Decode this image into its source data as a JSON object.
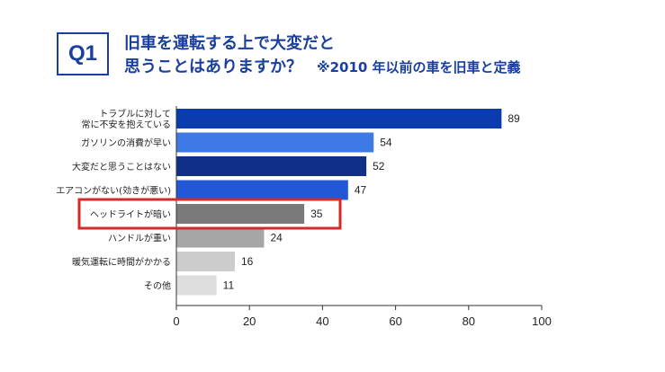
{
  "header": {
    "badge": "Q1",
    "title_line1": "旧車を運転する上で大変だと",
    "title_line2": "思うことはありますか？",
    "note": "※2010 年以前の車を旧車と定義"
  },
  "chart_data": {
    "type": "bar",
    "orientation": "horizontal",
    "categories": [
      [
        "トラブルに対して",
        "常に不安を抱えている"
      ],
      [
        "ガソリンの消費が早い"
      ],
      [
        "大変だと思うことはない"
      ],
      [
        "エアコンがない(効きが悪い)"
      ],
      [
        "ヘッドライトが暗い"
      ],
      [
        "ハンドルが重い"
      ],
      [
        "暖気運転に時間がかかる"
      ],
      [
        "その他"
      ]
    ],
    "values": [
      89,
      54,
      52,
      47,
      35,
      24,
      16,
      11
    ],
    "bar_colors": [
      "#0a3cb0",
      "#3e7ae6",
      "#102f86",
      "#2257d6",
      "#7a7a7a",
      "#a6a6a6",
      "#cccccc",
      "#dedede"
    ],
    "highlight_index": 4,
    "highlight_color": "#d42a2a",
    "xlim": [
      0,
      100
    ],
    "xticks": [
      0,
      20,
      40,
      60,
      80,
      100
    ],
    "grid": false
  }
}
